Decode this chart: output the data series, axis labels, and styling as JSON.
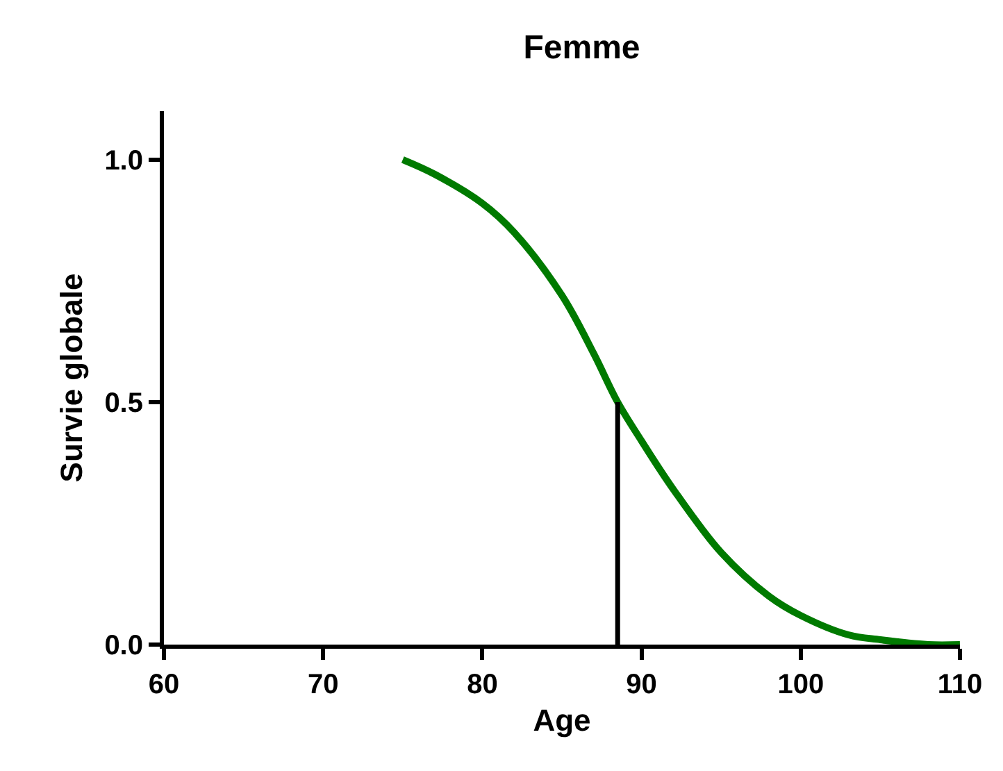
{
  "chart_data": {
    "type": "line",
    "title": "Femme",
    "xlabel": "Age",
    "ylabel": "Survie globale",
    "xlim": [
      60,
      110
    ],
    "xticks": [
      60,
      70,
      80,
      90,
      100,
      110
    ],
    "ylim": [
      0,
      1.1
    ],
    "yticks": [
      {
        "value": 0,
        "label": "0.0"
      },
      {
        "value": 0.5,
        "label": "0.5"
      },
      {
        "value": 1,
        "label": "1.0"
      }
    ],
    "marker": "none",
    "line_style": "solid",
    "series": [
      {
        "color": "#007a00",
        "x": [
          75,
          77,
          80,
          82,
          85,
          87,
          88.5,
          90,
          92,
          95,
          98,
          100,
          103,
          105,
          108,
          110
        ],
        "values": [
          1.0,
          0.97,
          0.91,
          0.85,
          0.72,
          0.6,
          0.5,
          0.42,
          0.32,
          0.19,
          0.1,
          0.06,
          0.02,
          0.01,
          0.0,
          0.0
        ]
      },
      {
        "color": "#000000",
        "x": [
          88.5,
          88.5
        ],
        "values": [
          0,
          0.5
        ]
      }
    ]
  }
}
